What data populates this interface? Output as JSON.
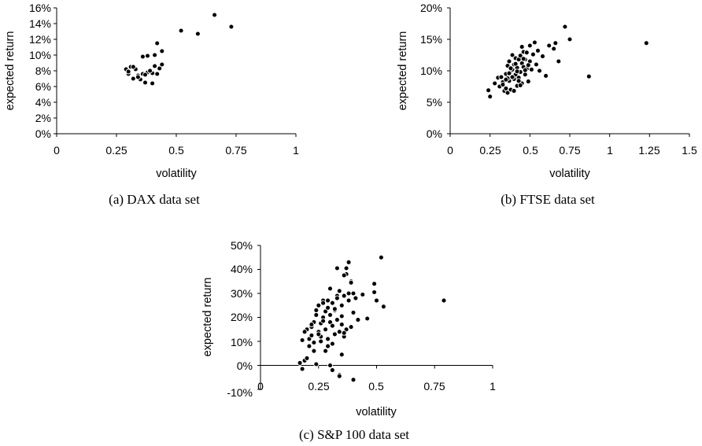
{
  "chart_data": [
    {
      "type": "scatter",
      "caption": "(a)  DAX data set",
      "xlabel": "volatility",
      "ylabel": "expected return",
      "xlim": [
        0,
        1
      ],
      "ylim": [
        0,
        16
      ],
      "x_ticks": [
        {
          "value": 0,
          "label": "0"
        },
        {
          "value": 0.25,
          "label": "0.25"
        },
        {
          "value": 0.5,
          "label": "0.5"
        },
        {
          "value": 0.75,
          "label": "0.75"
        },
        {
          "value": 1,
          "label": "1"
        }
      ],
      "y_ticks": [
        {
          "value": 0,
          "label": "0%"
        },
        {
          "value": 2,
          "label": "2%"
        },
        {
          "value": 4,
          "label": "4%"
        },
        {
          "value": 6,
          "label": "6%"
        },
        {
          "value": 8,
          "label": "8%"
        },
        {
          "value": 10,
          "label": "10%"
        },
        {
          "value": 12,
          "label": "12%"
        },
        {
          "value": 14,
          "label": "14%"
        },
        {
          "value": 16,
          "label": "16%"
        }
      ],
      "x": [
        0.29,
        0.3,
        0.31,
        0.32,
        0.33,
        0.34,
        0.35,
        0.36,
        0.37,
        0.38,
        0.39,
        0.4,
        0.41,
        0.42,
        0.43,
        0.44,
        0.3,
        0.32,
        0.34,
        0.36,
        0.38,
        0.4,
        0.42,
        0.37,
        0.39,
        0.41,
        0.43,
        0.44,
        0.52,
        0.59,
        0.66,
        0.73
      ],
      "y": [
        8.2,
        7.6,
        8.5,
        7.0,
        8.2,
        7.4,
        6.9,
        7.6,
        6.5,
        7.8,
        8.0,
        6.4,
        8.6,
        7.6,
        8.3,
        10.5,
        7.9,
        8.5,
        7.2,
        9.8,
        9.9,
        7.7,
        11.5,
        7.5,
        8.0,
        10.0,
        8.3,
        8.8,
        13.1,
        12.7,
        15.1,
        13.6
      ]
    },
    {
      "type": "scatter",
      "caption": "(b)  FTSE data set",
      "xlabel": "volatility",
      "ylabel": "expected return",
      "xlim": [
        0,
        1.5
      ],
      "ylim": [
        0,
        20
      ],
      "x_ticks": [
        {
          "value": 0,
          "label": "0"
        },
        {
          "value": 0.25,
          "label": "0.25"
        },
        {
          "value": 0.5,
          "label": "0.5"
        },
        {
          "value": 0.75,
          "label": "0.75"
        },
        {
          "value": 1,
          "label": "1"
        },
        {
          "value": 1.25,
          "label": "1.25"
        },
        {
          "value": 1.5,
          "label": "1.5"
        }
      ],
      "y_ticks": [
        {
          "value": 0,
          "label": "0%"
        },
        {
          "value": 5,
          "label": "5%"
        },
        {
          "value": 10,
          "label": "10%"
        },
        {
          "value": 15,
          "label": "15%"
        },
        {
          "value": 20,
          "label": "20%"
        }
      ],
      "x": [
        0.24,
        0.25,
        0.28,
        0.3,
        0.31,
        0.32,
        0.33,
        0.34,
        0.35,
        0.35,
        0.36,
        0.36,
        0.37,
        0.37,
        0.38,
        0.38,
        0.39,
        0.39,
        0.4,
        0.4,
        0.41,
        0.41,
        0.42,
        0.42,
        0.43,
        0.43,
        0.44,
        0.44,
        0.45,
        0.45,
        0.46,
        0.46,
        0.47,
        0.47,
        0.48,
        0.48,
        0.49,
        0.5,
        0.5,
        0.51,
        0.52,
        0.53,
        0.54,
        0.55,
        0.56,
        0.58,
        0.6,
        0.62,
        0.65,
        0.66,
        0.68,
        0.72,
        0.75,
        0.87,
        1.23,
        0.33,
        0.36,
        0.38,
        0.4,
        0.42,
        0.44,
        0.46,
        0.39,
        0.41,
        0.43,
        0.45,
        0.47,
        0.49,
        0.37,
        0.35
      ],
      "y": [
        6.9,
        5.9,
        8.0,
        8.9,
        7.5,
        9.0,
        8.2,
        6.8,
        9.5,
        7.2,
        10.8,
        6.5,
        8.4,
        11.5,
        9.9,
        7.0,
        10.2,
        12.5,
        8.7,
        11.0,
        9.4,
        12.0,
        7.6,
        10.5,
        11.8,
        8.9,
        12.4,
        9.8,
        11.2,
        8.0,
        10.6,
        13.0,
        9.4,
        11.8,
        10.3,
        12.9,
        8.3,
        11.5,
        14.0,
        10.2,
        12.6,
        14.5,
        11.0,
        13.2,
        10.0,
        12.3,
        9.2,
        14.0,
        13.5,
        14.4,
        11.5,
        17.0,
        15.0,
        9.1,
        14.4,
        7.8,
        8.8,
        10.4,
        6.8,
        9.9,
        7.7,
        11.9,
        9.0,
        11.1,
        8.4,
        13.8,
        10.1,
        10.9,
        9.6,
        8.6
      ]
    },
    {
      "type": "scatter",
      "caption": "(c)  S&P 100 data set",
      "xlabel": "volatility",
      "ylabel": "expected return",
      "xlim": [
        0,
        1
      ],
      "ylim": [
        -10,
        50
      ],
      "x_ticks": [
        {
          "value": 0,
          "label": "0"
        },
        {
          "value": 0.25,
          "label": "0.25"
        },
        {
          "value": 0.5,
          "label": "0.5"
        },
        {
          "value": 0.75,
          "label": "0.75"
        },
        {
          "value": 1,
          "label": "1"
        }
      ],
      "y_ticks": [
        {
          "value": -10,
          "label": "-10%"
        },
        {
          "value": 0,
          "label": "0%"
        },
        {
          "value": 10,
          "label": "10%"
        },
        {
          "value": 20,
          "label": "20%"
        },
        {
          "value": 30,
          "label": "30%"
        },
        {
          "value": 40,
          "label": "40%"
        },
        {
          "value": 50,
          "label": "50%"
        }
      ],
      "x": [
        0.17,
        0.18,
        0.19,
        0.2,
        0.21,
        0.22,
        0.22,
        0.23,
        0.23,
        0.24,
        0.24,
        0.25,
        0.25,
        0.26,
        0.26,
        0.27,
        0.27,
        0.28,
        0.28,
        0.29,
        0.29,
        0.3,
        0.3,
        0.31,
        0.31,
        0.32,
        0.32,
        0.33,
        0.33,
        0.34,
        0.34,
        0.35,
        0.35,
        0.36,
        0.36,
        0.37,
        0.37,
        0.38,
        0.38,
        0.39,
        0.39,
        0.4,
        0.4,
        0.41,
        0.42,
        0.44,
        0.46,
        0.49,
        0.5,
        0.52,
        0.53,
        0.79,
        0.18,
        0.2,
        0.21,
        0.23,
        0.25,
        0.27,
        0.29,
        0.3,
        0.32,
        0.33,
        0.35,
        0.36,
        0.38,
        0.4,
        0.34,
        0.31,
        0.28,
        0.24,
        0.22,
        0.19,
        0.26,
        0.33,
        0.37,
        0.39,
        0.29,
        0.31,
        0.35,
        0.27,
        0.36,
        0.3,
        0.34,
        0.49
      ],
      "y": [
        1.0,
        -1.5,
        2.0,
        3.0,
        11.0,
        16.0,
        12.5,
        18.0,
        9.5,
        21.0,
        0.5,
        14.0,
        25.0,
        17.5,
        12.0,
        27.0,
        20.0,
        15.0,
        22.5,
        11.0,
        24.0,
        18.0,
        32.0,
        16.5,
        26.0,
        13.0,
        23.0,
        29.0,
        19.0,
        14.0,
        31.0,
        17.0,
        25.0,
        12.0,
        29.0,
        15.0,
        40.5,
        27.0,
        43.0,
        16.0,
        35.0,
        22.0,
        30.0,
        28.0,
        19.0,
        29.5,
        19.5,
        34.0,
        27.0,
        45.0,
        24.5,
        27.0,
        10.5,
        15.0,
        8.0,
        6.0,
        13.0,
        18.5,
        8.0,
        21.0,
        23.5,
        28.0,
        4.5,
        13.5,
        30.0,
        -6.0,
        -4.0,
        -2.0,
        6.0,
        23.0,
        17.0,
        14.0,
        10.0,
        40.5,
        38.0,
        34.5,
        27.0,
        9.0,
        20.5,
        26.0,
        37.5,
        0.0,
        -4.5,
        30.5
      ]
    }
  ]
}
